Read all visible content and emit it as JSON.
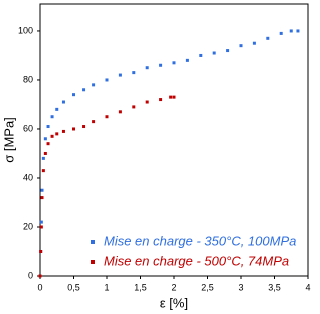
{
  "chart_data": {
    "type": "scatter",
    "xlabel": "ε [%]",
    "ylabel": "σ [MPa]",
    "xlim": [
      0,
      4
    ],
    "ylim": [
      0,
      111
    ],
    "xticks": [
      0,
      {
        "value": 0.5,
        "label": "0,5"
      },
      1,
      {
        "value": 1.5,
        "label": "1,5"
      },
      2,
      {
        "value": 2.5,
        "label": "2,5"
      },
      3,
      {
        "value": 3.5,
        "label": "3,5"
      },
      4
    ],
    "yticks": [
      0,
      20,
      40,
      60,
      80,
      100
    ],
    "legend": "lower right",
    "series": [
      {
        "name": "Mise en charge - 350°C, 100MPa",
        "color": "#2f6fe0",
        "x": [
          0,
          0.01,
          0.02,
          0.03,
          0.05,
          0.08,
          0.12,
          0.18,
          0.25,
          0.35,
          0.5,
          0.65,
          0.8,
          1,
          1.2,
          1.4,
          1.6,
          1.8,
          2,
          2.2,
          2.4,
          2.6,
          2.8,
          3,
          3.2,
          3.4,
          3.6,
          3.75,
          3.85
        ],
        "values": [
          0,
          10,
          22,
          35,
          48,
          56,
          61,
          65,
          68,
          71,
          74,
          76,
          78,
          80,
          82,
          83,
          85,
          86,
          87,
          88,
          90,
          91,
          92,
          94,
          95,
          97,
          99,
          100,
          100
        ]
      },
      {
        "name": "Mise en charge - 500°C, 74MPa",
        "color": "#c00000",
        "x": [
          0,
          0.01,
          0.02,
          0.03,
          0.05,
          0.08,
          0.12,
          0.18,
          0.25,
          0.35,
          0.5,
          0.65,
          0.8,
          1,
          1.2,
          1.4,
          1.6,
          1.8,
          1.95,
          2
        ],
        "values": [
          0,
          10,
          20,
          32,
          43,
          50,
          54,
          57,
          58,
          59,
          60,
          61,
          63,
          65,
          67,
          69,
          71,
          72,
          73,
          73
        ]
      }
    ]
  }
}
